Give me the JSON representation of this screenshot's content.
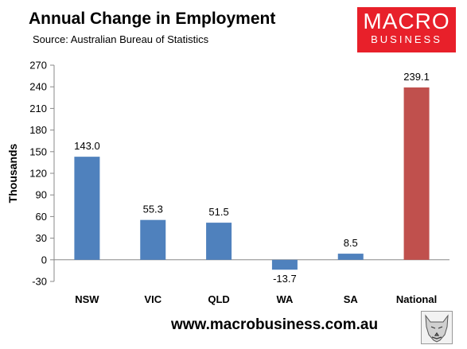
{
  "header": {
    "title": "Annual Change in Employment",
    "subtitle": "Source: Australian Bureau of Statistics"
  },
  "logo": {
    "line1": "MACRO",
    "line2": "BUSINESS",
    "color": "#e8202a"
  },
  "footer": {
    "website": "www.macrobusiness.com.au"
  },
  "chart_data": {
    "type": "bar",
    "title": "Annual Change in Employment",
    "ylabel": "Thousands",
    "xlabel": "",
    "ylim": [
      -30,
      270
    ],
    "yticks": [
      -30,
      0,
      30,
      60,
      90,
      120,
      150,
      180,
      210,
      240,
      270
    ],
    "categories": [
      "NSW",
      "VIC",
      "QLD",
      "WA",
      "SA",
      "National"
    ],
    "values": [
      143.0,
      55.3,
      51.5,
      -13.7,
      8.5,
      239.1
    ],
    "value_labels": [
      "143.0",
      "55.3",
      "51.5",
      "-13.7",
      "8.5",
      "239.1"
    ],
    "colors": [
      "#4f81bd",
      "#4f81bd",
      "#4f81bd",
      "#4f81bd",
      "#4f81bd",
      "#c0504d"
    ],
    "grid": false,
    "legend": "none"
  }
}
